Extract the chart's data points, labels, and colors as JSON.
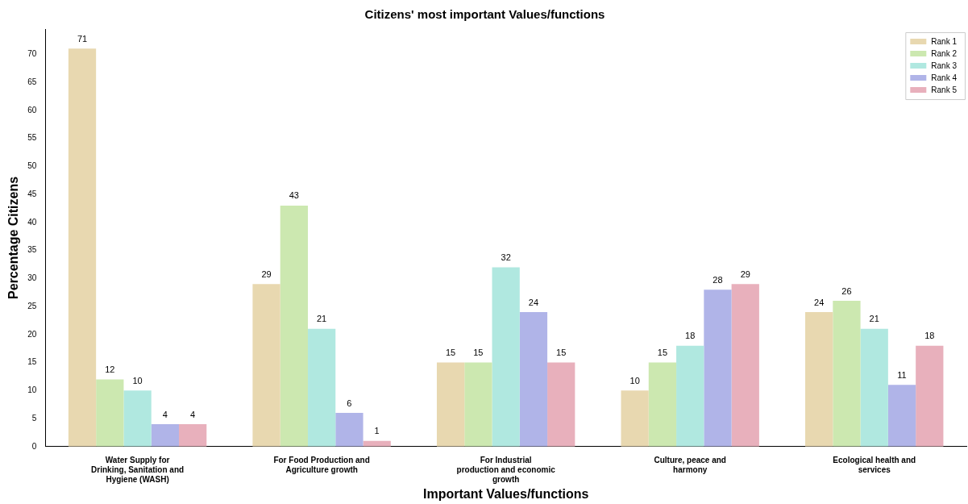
{
  "chart_data": {
    "type": "bar",
    "title": "Citizens' most important Values/functions",
    "xlabel": "Important Values/functions",
    "ylabel": "Percentage Citizens",
    "categories": [
      "Water Supply for Drinking, Sanitation and Hygiene (WASH)",
      "For Food Production and Agriculture growth",
      "For Industrial production and economic growth",
      "Culture, peace and harmony",
      "Ecological health and services"
    ],
    "series": [
      {
        "name": "Rank 1",
        "color": "#e8d8b0",
        "values": [
          71,
          29,
          15,
          10,
          24
        ]
      },
      {
        "name": "Rank 2",
        "color": "#cce8b0",
        "values": [
          12,
          43,
          15,
          15,
          26
        ]
      },
      {
        "name": "Rank 3",
        "color": "#b0e8e0",
        "values": [
          10,
          21,
          32,
          18,
          21
        ]
      },
      {
        "name": "Rank 4",
        "color": "#b0b4e8",
        "values": [
          4,
          6,
          24,
          28,
          11
        ]
      },
      {
        "name": "Rank 5",
        "color": "#e8b0bc",
        "values": [
          4,
          1,
          15,
          29,
          18
        ]
      }
    ],
    "ylim": [
      0,
      74.5
    ],
    "yticks": [
      0,
      5,
      10,
      15,
      20,
      25,
      30,
      35,
      40,
      45,
      50,
      55,
      60,
      65,
      70
    ],
    "data_labels": true,
    "legend": "top right",
    "grid": false
  }
}
